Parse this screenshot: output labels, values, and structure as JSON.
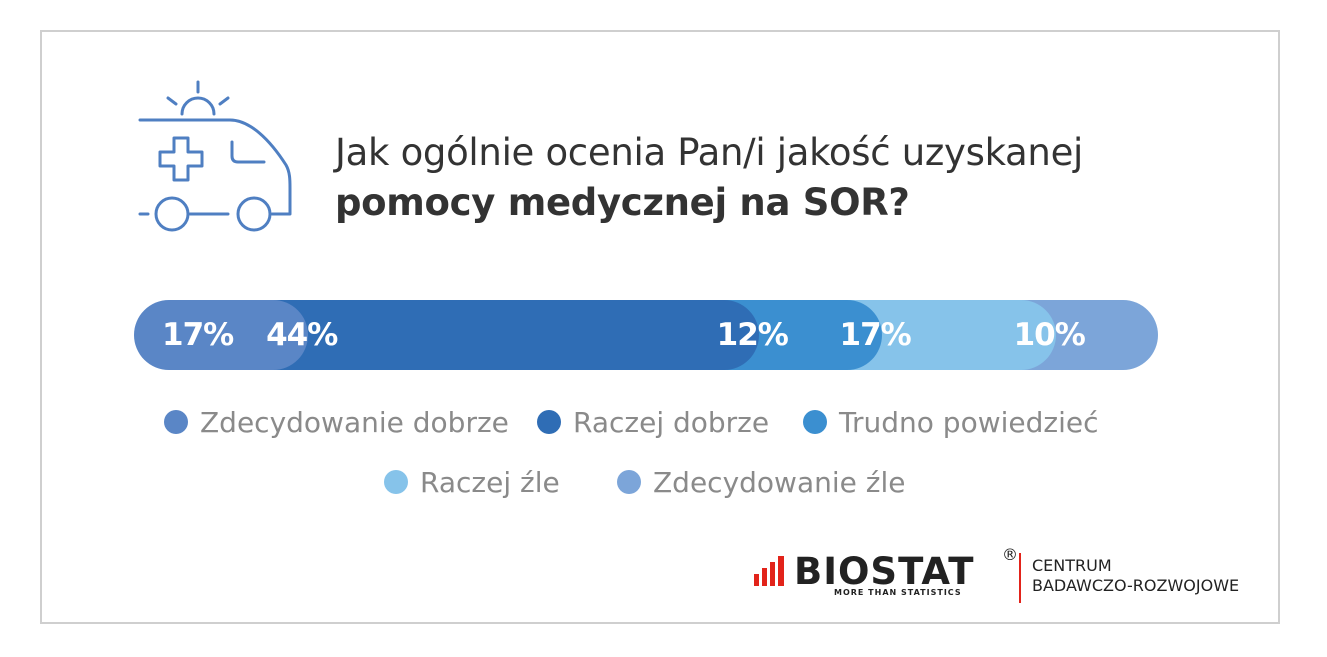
{
  "title": {
    "line1": "Jak ogólnie ocenia Pan/i jakość uzyskanej",
    "line2": "pomocy medycznej na SOR?"
  },
  "chart_data": {
    "type": "bar",
    "orientation": "horizontal-stacked",
    "categories": [
      "Zdecydowanie dobrze",
      "Raczej dobrze",
      "Trudno powiedzieć",
      "Raczej źle",
      "Zdecydowanie źle"
    ],
    "values": [
      17,
      44,
      12,
      17,
      10
    ],
    "labels": [
      "17%",
      "44%",
      "12%",
      "17%",
      "10%"
    ],
    "colors": [
      "#5a86c6",
      "#2f6db5",
      "#3b8fd0",
      "#86c3ea",
      "#7ca5d9"
    ]
  },
  "legend": [
    {
      "label": "Zdecydowanie dobrze",
      "color": "#5a86c6"
    },
    {
      "label": "Raczej dobrze",
      "color": "#2f6db5"
    },
    {
      "label": "Trudno powiedzieć",
      "color": "#3b8fd0"
    },
    {
      "label": "Raczej źle",
      "color": "#86c3ea"
    },
    {
      "label": "Zdecydowanie źle",
      "color": "#7ca5d9"
    }
  ],
  "branding": {
    "logo_word": "BIOSTAT",
    "registered": "®",
    "tagline": "MORE THAN STATISTICS",
    "center_line1": "CENTRUM",
    "center_line2": "BADAWCZO-ROZWOJOWE",
    "accent": "#e2231a"
  },
  "icons": {
    "header": "ambulance-icon"
  }
}
